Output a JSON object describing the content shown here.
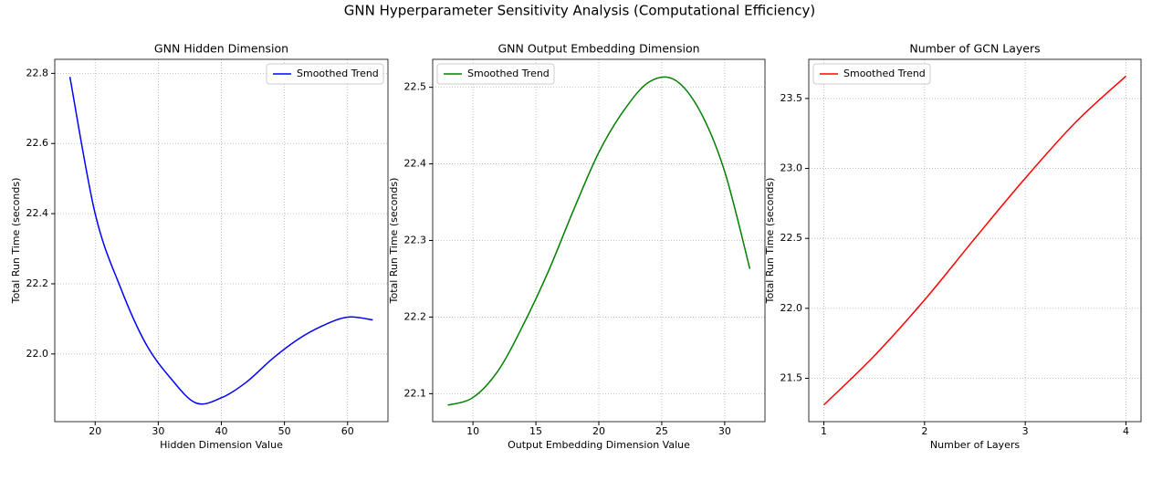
{
  "title": "GNN Hyperparameter Sensitivity Analysis (Computational Efficiency)",
  "chart_data": [
    {
      "type": "line",
      "title": "GNN Hidden Dimension",
      "x_label": "Hidden Dimension Value",
      "y_label": "Total Run Time (seconds)",
      "x": [
        16,
        20,
        24,
        28,
        32,
        36,
        40,
        44,
        48,
        52,
        56,
        60,
        64
      ],
      "series": [
        {
          "name": "Smoothed Trend",
          "color": "#0000ff",
          "values": [
            22.79,
            22.4,
            22.19,
            22.03,
            21.93,
            21.86,
            21.875,
            21.92,
            21.985,
            22.04,
            22.08,
            22.105,
            22.097
          ]
        }
      ],
      "xlim": [
        13.6,
        66.4
      ],
      "xticks": [
        20,
        30,
        40,
        50,
        60
      ],
      "ylim": [
        21.807,
        22.84
      ],
      "yticks": [
        {
          "value": 22,
          "label": "22.0"
        },
        22.2,
        22.4,
        22.6,
        22.8
      ],
      "grid": true,
      "legend": "upper right"
    },
    {
      "type": "line",
      "title": "GNN Output Embedding Dimension",
      "x_label": "Output Embedding Dimension Value",
      "y_label": "Total Run Time (seconds)",
      "x": [
        8,
        10,
        12,
        14,
        16,
        18,
        20,
        22,
        24,
        26,
        28,
        30,
        32
      ],
      "series": [
        {
          "name": "Smoothed Trend",
          "color": "#008000",
          "values": [
            22.085,
            22.095,
            22.13,
            22.19,
            22.26,
            22.34,
            22.415,
            22.47,
            22.507,
            22.51,
            22.47,
            22.39,
            22.263
          ]
        }
      ],
      "xlim": [
        6.8,
        33.2
      ],
      "xticks": [
        10,
        15,
        20,
        25,
        30
      ],
      "ylim": [
        22.0635,
        22.5365
      ],
      "yticks": [
        22.1,
        22.2,
        22.3,
        22.4,
        22.5
      ],
      "grid": true,
      "legend": "upper left"
    },
    {
      "type": "line",
      "title": "Number of GCN Layers",
      "x_label": "Number of Layers",
      "y_label": "Total Run Time (seconds)",
      "x": [
        1,
        1.5,
        2,
        2.5,
        3,
        3.5,
        4
      ],
      "series": [
        {
          "name": "Smoothed Trend",
          "color": "#ff0000",
          "values": [
            21.31,
            21.66,
            22.06,
            22.5,
            22.93,
            23.33,
            23.66
          ]
        }
      ],
      "xlim": [
        0.85,
        4.15
      ],
      "xticks": [
        1,
        2,
        3,
        4
      ],
      "ylim": [
        21.19,
        23.78
      ],
      "yticks": [
        21.5,
        {
          "value": 22,
          "label": "22.0"
        },
        22.5,
        {
          "value": 23,
          "label": "23.0"
        },
        23.5
      ],
      "grid": true,
      "legend": "upper left"
    }
  ]
}
